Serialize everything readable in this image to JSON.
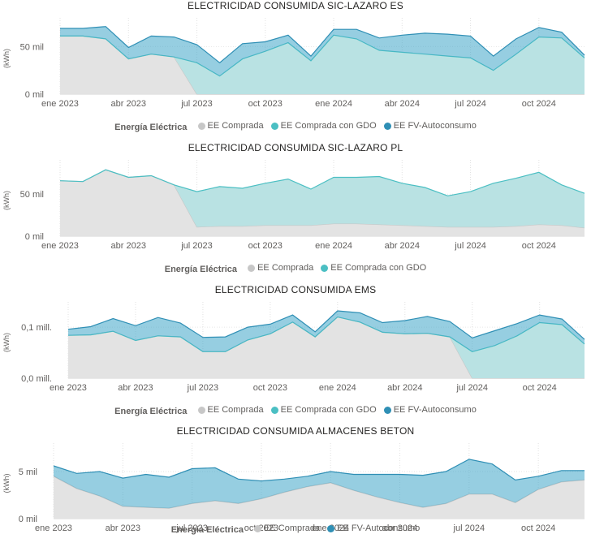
{
  "colors": {
    "comprada": "#c7c7c7",
    "gdo": "#4bbfc3",
    "fv": "#2f8fb5"
  },
  "legend": {
    "title": "Energía Eléctrica",
    "comprada": "EE Comprada",
    "gdo": "EE Comprada con GDO",
    "fv": "EE FV-Autoconsumo"
  },
  "chart_data": [
    {
      "type": "area",
      "stacked": true,
      "title": "ELECTRICIDAD CONSUMIDA SIC-LAZARO ES",
      "ylabel": "(kWh)",
      "ylim": [
        0,
        75
      ],
      "yticks": [
        {
          "v": 0,
          "label": "0 mil"
        },
        {
          "v": 50,
          "label": "50 mil"
        }
      ],
      "xticks": [
        "ene 2023",
        "abr 2023",
        "jul 2023",
        "oct 2023",
        "ene 2024",
        "abr 2024",
        "jul 2024",
        "oct 2024"
      ],
      "x": [
        "2023-01",
        "2023-02",
        "2023-03",
        "2023-04",
        "2023-05",
        "2023-06",
        "2023-07",
        "2023-08",
        "2023-09",
        "2023-10",
        "2023-11",
        "2023-12",
        "2024-01",
        "2024-02",
        "2024-03",
        "2024-04",
        "2024-05",
        "2024-06",
        "2024-07",
        "2024-08",
        "2024-09",
        "2024-10",
        "2024-11",
        "2024-12"
      ],
      "series": [
        {
          "name": "EE Comprada",
          "key": "comprada",
          "values": [
            61,
            61,
            58,
            37,
            42,
            39,
            0,
            0,
            0,
            0,
            0,
            0,
            0,
            0,
            0,
            0,
            0,
            0,
            0,
            0,
            0,
            0,
            0,
            0
          ]
        },
        {
          "name": "EE Comprada con GDO",
          "key": "gdo",
          "values": [
            0,
            0,
            0,
            0,
            0,
            0,
            33,
            19,
            37,
            45,
            54,
            35,
            62,
            58,
            46,
            44,
            42,
            40,
            38,
            25,
            42,
            60,
            59,
            38
          ]
        },
        {
          "name": "EE FV-Autoconsumo",
          "key": "fv",
          "values": [
            8,
            8,
            13,
            12,
            19,
            21,
            19,
            14,
            16,
            10,
            8,
            5,
            6,
            10,
            13,
            18,
            22,
            23,
            23,
            15,
            16,
            10,
            6,
            3
          ]
        }
      ]
    },
    {
      "type": "area",
      "stacked": true,
      "title": "ELECTRICIDAD CONSUMIDA SIC-LAZARO PL",
      "ylabel": "(kWh)",
      "ylim": [
        0,
        85
      ],
      "yticks": [
        {
          "v": 0,
          "label": "0 mil"
        },
        {
          "v": 50,
          "label": "50 mil"
        }
      ],
      "xticks": [
        "ene 2023",
        "abr 2023",
        "jul 2023",
        "oct 2023",
        "ene 2024",
        "abr 2024",
        "jul 2024",
        "oct 2024"
      ],
      "x": [
        "2023-01",
        "2023-02",
        "2023-03",
        "2023-04",
        "2023-05",
        "2023-06",
        "2023-07",
        "2023-08",
        "2023-09",
        "2023-10",
        "2023-11",
        "2023-12",
        "2024-01",
        "2024-02",
        "2024-03",
        "2024-04",
        "2024-05",
        "2024-06",
        "2024-07",
        "2024-08",
        "2024-09",
        "2024-10",
        "2024-11",
        "2024-12"
      ],
      "series": [
        {
          "name": "EE Comprada",
          "key": "comprada",
          "values": [
            66,
            65,
            79,
            70,
            72,
            61,
            11,
            12,
            12,
            13,
            13,
            13,
            15,
            15,
            14,
            13,
            12,
            11,
            11,
            11,
            12,
            14,
            13,
            10
          ]
        },
        {
          "name": "EE Comprada con GDO",
          "key": "gdo",
          "values": [
            0,
            0,
            0,
            0,
            0,
            0,
            42,
            47,
            45,
            50,
            55,
            43,
            55,
            55,
            57,
            50,
            46,
            37,
            42,
            52,
            57,
            62,
            48,
            41
          ]
        }
      ]
    },
    {
      "type": "area",
      "stacked": true,
      "title": "ELECTRICIDAD CONSUMIDA EMS",
      "ylabel": "(kWh)",
      "ylim": [
        0,
        0.14
      ],
      "yticks": [
        {
          "v": 0,
          "label": "0,0 mill."
        },
        {
          "v": 0.1,
          "label": "0,1 mill."
        }
      ],
      "xticks": [
        "ene 2023",
        "abr 2023",
        "jul 2023",
        "oct 2023",
        "ene 2024",
        "abr 2024",
        "jul 2024",
        "oct 2024"
      ],
      "x": [
        "2023-01",
        "2023-02",
        "2023-03",
        "2023-04",
        "2023-05",
        "2023-06",
        "2023-07",
        "2023-08",
        "2023-09",
        "2023-10",
        "2023-11",
        "2023-12",
        "2024-01",
        "2024-02",
        "2024-03",
        "2024-04",
        "2024-05",
        "2024-06",
        "2024-07",
        "2024-08",
        "2024-09",
        "2024-10",
        "2024-11",
        "2024-12"
      ],
      "series": [
        {
          "name": "EE Comprada",
          "key": "comprada",
          "values": [
            0.084,
            0.085,
            0.092,
            0.074,
            0.083,
            0.081,
            0.052,
            0.052,
            0.075,
            0.087,
            0.11,
            0.081,
            0.12,
            0.11,
            0.09,
            0.087,
            0.088,
            0.081,
            0,
            0,
            0,
            0,
            0,
            0
          ]
        },
        {
          "name": "EE Comprada con GDO",
          "key": "gdo",
          "values": [
            0,
            0,
            0,
            0,
            0,
            0,
            0,
            0,
            0,
            0,
            0,
            0,
            0,
            0,
            0,
            0,
            0,
            0,
            0.052,
            0.064,
            0.083,
            0.109,
            0.105,
            0.067
          ]
        },
        {
          "name": "EE FV-Autoconsumo",
          "key": "fv",
          "values": [
            0.012,
            0.016,
            0.025,
            0.029,
            0.036,
            0.027,
            0.028,
            0.029,
            0.025,
            0.019,
            0.014,
            0.01,
            0.012,
            0.018,
            0.019,
            0.026,
            0.033,
            0.03,
            0.027,
            0.029,
            0.024,
            0.015,
            0.011,
            0.009
          ]
        }
      ]
    },
    {
      "type": "area",
      "stacked": true,
      "title": "ELECTRICIDAD CONSUMIDA ALMACENES BETON",
      "ylabel": "(kWh)",
      "ylim": [
        0,
        7.5
      ],
      "yticks": [
        {
          "v": 0,
          "label": "0 mil"
        },
        {
          "v": 5,
          "label": "5 mil"
        }
      ],
      "xticks": [
        "ene 2023",
        "abr 2023",
        "jul 2023",
        "oct 2023",
        "ene 2024",
        "abr 2024",
        "jul 2024",
        "oct 2024"
      ],
      "x": [
        "2023-01",
        "2023-02",
        "2023-03",
        "2023-04",
        "2023-05",
        "2023-06",
        "2023-07",
        "2023-08",
        "2023-09",
        "2023-10",
        "2023-11",
        "2023-12",
        "2024-01",
        "2024-02",
        "2024-03",
        "2024-04",
        "2024-05",
        "2024-06",
        "2024-07",
        "2024-08",
        "2024-09",
        "2024-10",
        "2024-11",
        "2024-12"
      ],
      "series": [
        {
          "name": "EE Comprada",
          "key": "comprada",
          "values": [
            4.5,
            3.2,
            2.4,
            1.3,
            1.2,
            1.1,
            1.6,
            1.9,
            1.6,
            2.1,
            2.8,
            3.4,
            3.8,
            3.0,
            2.3,
            1.7,
            1.2,
            1.6,
            2.6,
            2.6,
            1.7,
            3.1,
            3.9,
            4.1
          ]
        },
        {
          "name": "EE FV-Autoconsumo",
          "key": "fv",
          "values": [
            1.1,
            1.6,
            2.6,
            3.0,
            3.5,
            3.3,
            3.7,
            3.5,
            2.6,
            1.9,
            1.4,
            1.1,
            1.2,
            1.7,
            2.4,
            3.0,
            3.4,
            3.4,
            3.7,
            3.2,
            2.4,
            1.4,
            1.2,
            1.0
          ]
        }
      ]
    }
  ]
}
